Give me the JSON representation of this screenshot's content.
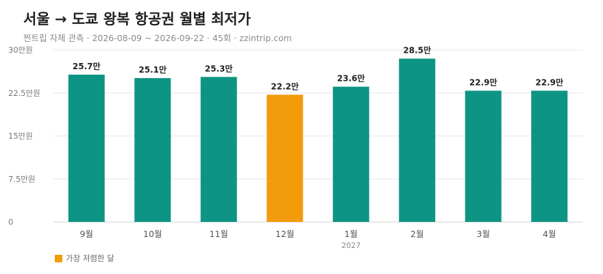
{
  "title": "서울 → 도쿄 왕복 항공권 월별 최저가",
  "subtitle": "찐트립 자체 관측 · 2026-08-09 ~ 2026-09-22 · 45회 · zzintrip.com",
  "legend": {
    "label": "가장 저렴한 달"
  },
  "colors": {
    "normal": "#0e9484",
    "highlight": "#f39c0b",
    "grid": "#e6e6e6"
  },
  "chart_data": {
    "type": "bar",
    "title": "서울 → 도쿄 왕복 항공권 월별 최저가",
    "categories": [
      "9월",
      "10월",
      "11월",
      "12월",
      "1월",
      "2월",
      "3월",
      "4월"
    ],
    "category_sublabels": [
      "",
      "",
      "",
      "",
      "2027",
      "",
      "",
      ""
    ],
    "values": [
      25.7,
      25.1,
      25.3,
      22.2,
      23.6,
      28.5,
      22.9,
      22.9
    ],
    "value_labels": [
      "25.7만",
      "25.1만",
      "25.3만",
      "22.2만",
      "23.6만",
      "28.5만",
      "22.9만",
      "22.9만"
    ],
    "highlight_index": 3,
    "ylim": [
      0,
      30
    ],
    "yticks": [
      0,
      7.5,
      15,
      22.5,
      30
    ],
    "ytick_labels": [
      "0",
      "7.5만원",
      "15만원",
      "22.5만원",
      "30만원"
    ],
    "grid": true,
    "legend_position": "bottom-left"
  }
}
